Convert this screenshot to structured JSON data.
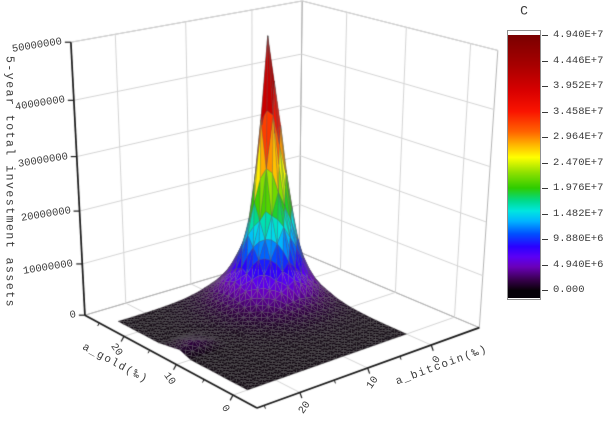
{
  "labels": {
    "z_axis_title": "5-year total investment assets",
    "gold_axis_title": "a_gold(‰)",
    "bitcoin_axis_title": "a_bitcoin(‰)",
    "colorbar_title": "C"
  },
  "z_axis": {
    "min": 0,
    "max": 50000000,
    "tick_values": [
      0,
      10000000,
      20000000,
      30000000,
      40000000,
      50000000
    ],
    "tick_labels": [
      "0",
      "10000000",
      "20000000",
      "30000000",
      "40000000",
      "50000000"
    ]
  },
  "gold_axis": {
    "tick_values": [
      0,
      10,
      20
    ],
    "tick_labels": [
      "0",
      "10",
      "20"
    ],
    "minor_tick_values": [
      5,
      15,
      25
    ]
  },
  "bitcoin_axis": {
    "tick_values": [
      0,
      10,
      20
    ],
    "tick_labels": [
      "0",
      "10",
      "20"
    ],
    "minor_tick_values": [
      5,
      15,
      25
    ]
  },
  "colorbar": {
    "title": "C",
    "min_value": 0,
    "max_value": 49400000,
    "tick_labels": [
      "4.940E+7",
      "4.446E+7",
      "3.952E+7",
      "3.458E+7",
      "2.964E+7",
      "2.470E+7",
      "1.976E+7",
      "1.482E+7",
      "9.880E+6",
      "4.940E+6",
      "0.000"
    ],
    "above_max_color": "#ffffff",
    "below_min_color": "#050008",
    "gradient_stops": [
      [
        0.0,
        "#0a000a"
      ],
      [
        0.04,
        "#38004d"
      ],
      [
        0.09,
        "#6a00b8"
      ],
      [
        0.13,
        "#5b00f5"
      ],
      [
        0.17,
        "#2a00ff"
      ],
      [
        0.22,
        "#0050ff"
      ],
      [
        0.27,
        "#00b4ff"
      ],
      [
        0.31,
        "#00e6e0"
      ],
      [
        0.35,
        "#00da8c"
      ],
      [
        0.4,
        "#2ecc00"
      ],
      [
        0.46,
        "#8ee000"
      ],
      [
        0.52,
        "#ffff00"
      ],
      [
        0.57,
        "#ffb400"
      ],
      [
        0.62,
        "#ff6400"
      ],
      [
        0.7,
        "#fa1400"
      ],
      [
        0.78,
        "#d90000"
      ],
      [
        0.88,
        "#a80000"
      ],
      [
        1.0,
        "#7a0000"
      ]
    ]
  },
  "chart_data": {
    "type": "surface",
    "x_axis_label": "a_bitcoin(‰)",
    "y_axis_label": "a_gold(‰)",
    "z_axis_label": "5-year total investment assets",
    "z_range": [
      0,
      50000000
    ],
    "peak_value": 49400000,
    "peak_at": {
      "gold": 18,
      "bitcoin": 6
    },
    "gold_values": [
      0,
      2,
      4,
      6,
      8,
      10,
      12,
      14,
      16,
      18,
      20,
      22,
      24
    ],
    "bitcoin_values": [
      0,
      2,
      4,
      6,
      8,
      10,
      12,
      14,
      16,
      18,
      20,
      22,
      24
    ],
    "z_unit": 1000000,
    "z_values": [
      [
        0.009,
        0.011,
        0.012,
        0.014,
        0.012,
        0.011,
        0.009,
        0.006,
        0.004,
        0.003,
        0.002,
        0.001,
        0.001
      ],
      [
        0.021,
        0.027,
        0.033,
        0.035,
        0.033,
        0.027,
        0.021,
        0.015,
        0.01,
        0.006,
        0.003,
        0.002,
        0.001
      ],
      [
        0.05,
        0.065,
        0.08,
        0.085,
        0.08,
        0.065,
        0.05,
        0.033,
        0.02,
        0.011,
        0.006,
        0.003,
        0.002
      ],
      [
        0.11,
        0.16,
        0.2,
        0.21,
        0.2,
        0.16,
        0.11,
        0.07,
        0.04,
        0.022,
        0.011,
        0.006,
        0.003
      ],
      [
        0.25,
        0.37,
        0.47,
        0.52,
        0.47,
        0.37,
        0.25,
        0.15,
        0.08,
        0.04,
        0.02,
        0.01,
        0.004
      ],
      [
        0.52,
        0.85,
        1.25,
        1.3,
        1.16,
        0.85,
        0.52,
        0.29,
        0.15,
        0.07,
        0.033,
        0.015,
        0.006
      ],
      [
        1.04,
        1.9,
        2.8,
        3.2,
        2.8,
        1.9,
        1.04,
        0.52,
        0.25,
        0.11,
        0.9,
        1.8,
        0.8
      ],
      [
        1.9,
        3.8,
        6.5,
        9.5,
        6.5,
        3.8,
        1.9,
        0.85,
        0.37,
        0.16,
        0.6,
        0.9,
        0.4
      ],
      [
        2.8,
        8.0,
        16.0,
        22.0,
        13.6,
        6.5,
        2.8,
        1.16,
        0.47,
        0.2,
        0.08,
        0.033,
        0.012
      ],
      [
        3.2,
        14.0,
        33.0,
        49.4,
        19.9,
        8.0,
        3.2,
        1.3,
        0.52,
        0.21,
        0.085,
        0.035,
        0.014
      ],
      [
        2.8,
        6.5,
        13.6,
        17.0,
        11.5,
        6.5,
        2.8,
        1.16,
        0.47,
        0.2,
        0.08,
        0.033,
        0.012
      ],
      [
        1.9,
        3.8,
        6.5,
        8.0,
        6.5,
        3.8,
        1.9,
        0.85,
        0.37,
        0.16,
        0.065,
        0.027,
        0.011
      ],
      [
        1.04,
        1.9,
        2.8,
        3.2,
        2.8,
        1.9,
        1.04,
        0.52,
        0.25,
        0.11,
        0.05,
        0.021,
        0.009
      ]
    ]
  }
}
